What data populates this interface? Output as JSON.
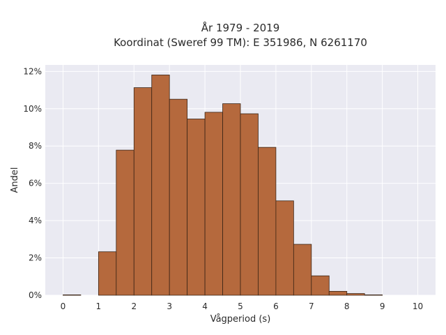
{
  "chart_data": {
    "type": "bar",
    "title_lines": [
      "År 1979 - 2019",
      "Koordinat (Sweref 99 TM): E 351986, N 6261170"
    ],
    "xlabel": "Vågperiod (s)",
    "ylabel": "Andel",
    "xlim": [
      -0.5,
      10.5
    ],
    "ylim": [
      0,
      0.1235
    ],
    "x_ticks": [
      0,
      1,
      2,
      3,
      4,
      5,
      6,
      7,
      8,
      9,
      10
    ],
    "x_tick_labels": [
      "0",
      "1",
      "2",
      "3",
      "4",
      "5",
      "6",
      "7",
      "8",
      "9",
      "10"
    ],
    "y_ticks": [
      0,
      0.02,
      0.04,
      0.06,
      0.08,
      0.1,
      0.12
    ],
    "y_tick_labels": [
      "0%",
      "2%",
      "4%",
      "6%",
      "8%",
      "10%",
      "12%"
    ],
    "bin_width": 0.5,
    "bins": [
      {
        "start": 0.0,
        "value": 0.0002
      },
      {
        "start": 0.5,
        "value": 0.0
      },
      {
        "start": 1.0,
        "value": 0.0233
      },
      {
        "start": 1.5,
        "value": 0.0778
      },
      {
        "start": 2.0,
        "value": 0.1113
      },
      {
        "start": 2.5,
        "value": 0.1181
      },
      {
        "start": 3.0,
        "value": 0.1051
      },
      {
        "start": 3.5,
        "value": 0.0945
      },
      {
        "start": 4.0,
        "value": 0.0981
      },
      {
        "start": 4.5,
        "value": 0.1027
      },
      {
        "start": 5.0,
        "value": 0.0973
      },
      {
        "start": 5.5,
        "value": 0.0793
      },
      {
        "start": 6.0,
        "value": 0.0506
      },
      {
        "start": 6.5,
        "value": 0.0273
      },
      {
        "start": 7.0,
        "value": 0.0104
      },
      {
        "start": 7.5,
        "value": 0.0021
      },
      {
        "start": 8.0,
        "value": 0.0009
      },
      {
        "start": 8.5,
        "value": 0.0002
      },
      {
        "start": 9.0,
        "value": 0.0
      },
      {
        "start": 9.5,
        "value": 0.0
      }
    ],
    "grid": true,
    "colors": {
      "bar_fill": "#b5693d",
      "bar_edge": "#3a2415",
      "plot_bg": "#eaeaf2",
      "grid": "#ffffff"
    }
  }
}
